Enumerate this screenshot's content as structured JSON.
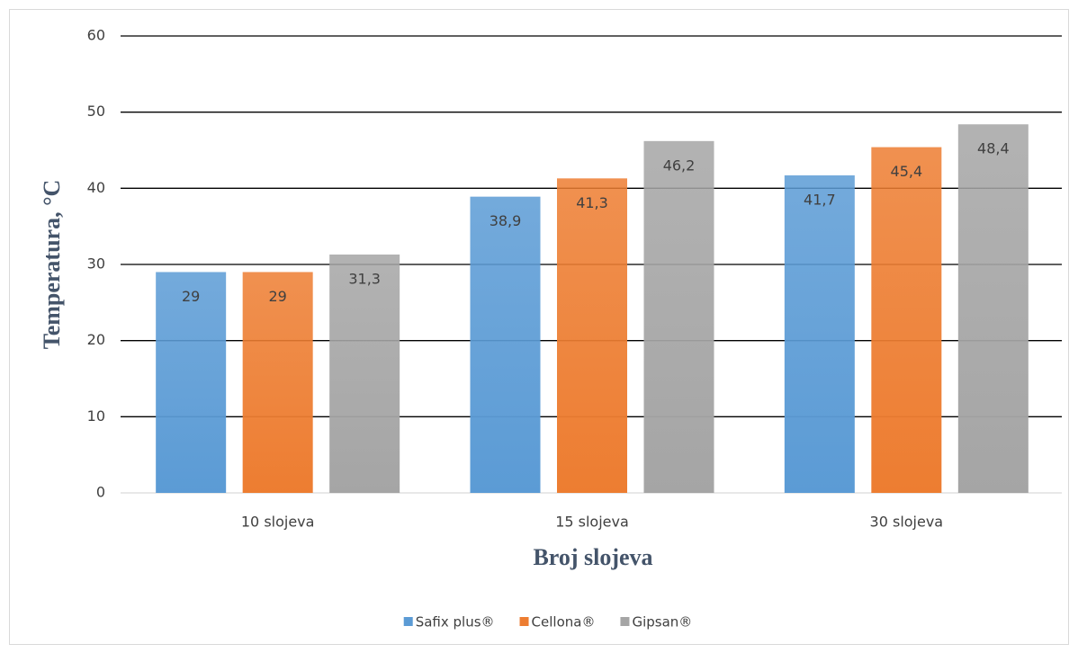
{
  "chart_data": {
    "type": "bar",
    "categories": [
      "10 slojeva",
      "15 slojeva",
      "30 slojeva"
    ],
    "series": [
      {
        "name": "Safix plus®",
        "color": "#5b9bd5",
        "values": [
          29,
          38.9,
          41.7
        ],
        "value_labels": [
          "29",
          "38,9",
          "41,7"
        ]
      },
      {
        "name": "Cellona®",
        "color": "#ed7d31",
        "values": [
          29,
          41.3,
          45.4
        ],
        "value_labels": [
          "29",
          "41,3",
          "45,4"
        ]
      },
      {
        "name": "Gipsan®",
        "color": "#a5a5a5",
        "values": [
          31.3,
          46.2,
          48.4
        ],
        "value_labels": [
          "31,3",
          "46,2",
          "48,4"
        ]
      }
    ],
    "xlabel": "Broj slojeva",
    "ylabel": "Temperatura, °C",
    "ylim": [
      0,
      60
    ],
    "yticks": [
      0,
      10,
      20,
      30,
      40,
      50,
      60
    ],
    "grid": true,
    "legend": "bottom"
  }
}
